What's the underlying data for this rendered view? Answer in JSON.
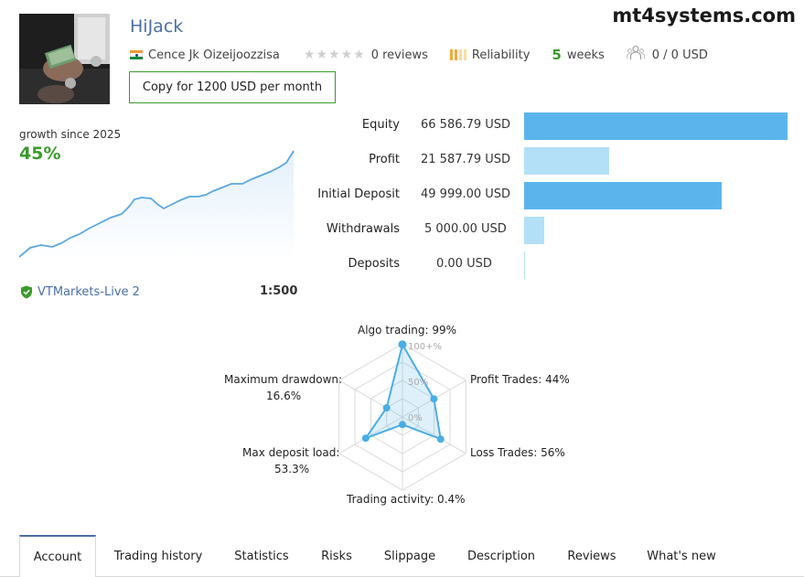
{
  "header": {
    "title": "HiJack",
    "watermark": "mt4systems.com",
    "author": "Cence Jk Oizeijoozzisa",
    "reviews": "0 reviews",
    "reliability": "Reliability",
    "weeks_num": "5",
    "weeks_label": "weeks",
    "subscribers": "0 / 0 USD",
    "copy_button": "Copy for 1200 USD per month",
    "stars_filled": 0,
    "stars_total": 5
  },
  "growth": {
    "label": "growth since 2025",
    "value": "45%",
    "line_color": "#5aa7e0"
  },
  "account": {
    "broker": "VTMarkets-Live 2",
    "leverage": "1:500"
  },
  "finance": {
    "max": 66586.79,
    "rows": [
      {
        "label": "Equity",
        "value_text": "66 586.79 USD",
        "value": 66586.79,
        "color": "#5bb5ec"
      },
      {
        "label": "Profit",
        "value_text": "21 587.79 USD",
        "value": 21587.79,
        "color": "#b3e0f7"
      },
      {
        "label": "Initial Deposit",
        "value_text": "49 999.00 USD",
        "value": 49999.0,
        "color": "#5bb5ec"
      },
      {
        "label": "Withdrawals",
        "value_text": "5 000.00 USD",
        "value": 5000.0,
        "color": "#b3e0f7"
      },
      {
        "label": "Deposits",
        "value_text": "0.00 USD",
        "value": 0,
        "color": "#b3e0f7"
      }
    ]
  },
  "radar": {
    "scale_labels": [
      "100+%",
      "50%",
      "0%"
    ],
    "axes": [
      {
        "label": "Algo trading: 99%",
        "value": 99
      },
      {
        "label": "Profit Trades: 44%",
        "value": 44
      },
      {
        "label": "Loss Trades: 56%",
        "value": 56
      },
      {
        "label": "Trading activity: 0.4%",
        "value": 0.4
      },
      {
        "label": "Max deposit load:",
        "label2": "53.3%",
        "value": 53.3
      },
      {
        "label": "Maximum drawdown:",
        "label2": "16.6%",
        "value": 16.6
      }
    ],
    "color": "#4aaee5"
  },
  "tabs": [
    {
      "label": "Account",
      "active": true
    },
    {
      "label": "Trading history",
      "active": false
    },
    {
      "label": "Statistics",
      "active": false
    },
    {
      "label": "Risks",
      "active": false
    },
    {
      "label": "Slippage",
      "active": false
    },
    {
      "label": "Description",
      "active": false
    },
    {
      "label": "Reviews",
      "active": false
    },
    {
      "label": "What's new",
      "active": false
    }
  ]
}
